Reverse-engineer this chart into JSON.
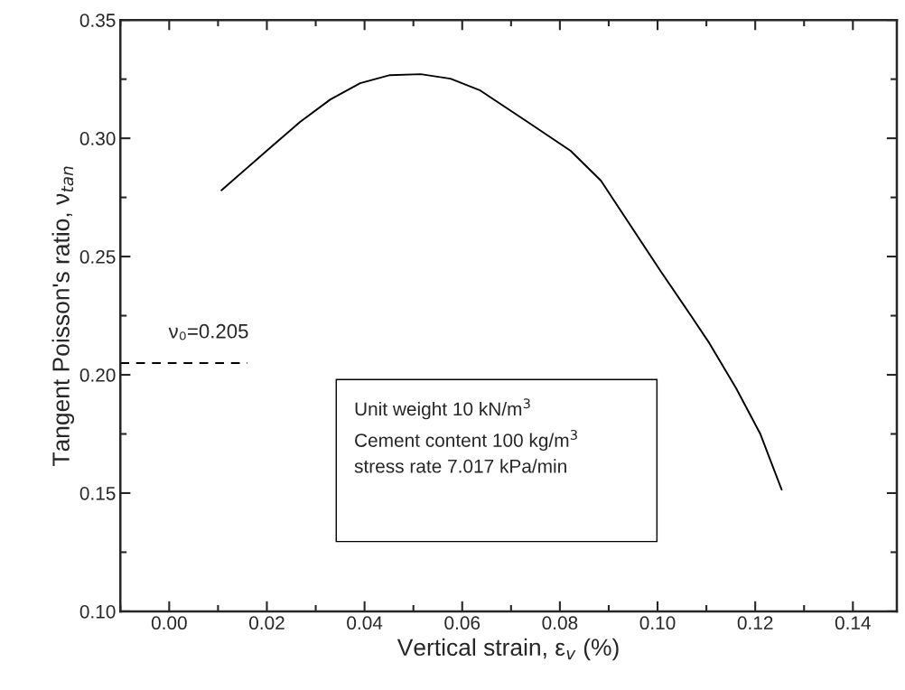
{
  "chart_data": {
    "type": "line",
    "xlabel": "Vertical strain, ε$_{v}$ (%)",
    "ylabel": "Tangent Poisson's ratio, ν$_{tan}$",
    "series": [
      {
        "color": "#000000",
        "line_style": "solid",
        "x": [
          0.0107,
          0.0207,
          0.0268,
          0.033,
          0.0391,
          0.0452,
          0.0515,
          0.0576,
          0.0637,
          0.0729,
          0.0822,
          0.0884,
          0.0945,
          0.1006,
          0.1069,
          0.1106,
          0.1161,
          0.121,
          0.1254
        ],
        "values": [
          0.278,
          0.296,
          0.3069,
          0.3164,
          0.3233,
          0.3267,
          0.3271,
          0.3252,
          0.3202,
          0.3076,
          0.2947,
          0.2821,
          0.263,
          0.2439,
          0.2248,
          0.2134,
          0.1943,
          0.1752,
          0.1515
        ]
      },
      {
        "color": "#000000",
        "line_style": "dashed",
        "x": [
          -0.01,
          0.016
        ],
        "values": [
          0.205,
          0.205
        ]
      }
    ],
    "annotations": [
      "ν₀=0.205",
      "Unit weight 10 kN/m$^{3}$\nCement content 100 kg/m$^{3}$\nstress rate 7.017 kPa/min"
    ],
    "xlim": [
      -0.01,
      0.149
    ],
    "xticks": [
      {
        "value": 0.0,
        "label": "0.00"
      },
      {
        "value": 0.02,
        "label": "0.02"
      },
      {
        "value": 0.04,
        "label": "0.04"
      },
      {
        "value": 0.06,
        "label": "0.06"
      },
      {
        "value": 0.08,
        "label": "0.08"
      },
      {
        "value": 0.1,
        "label": "0.10"
      },
      {
        "value": 0.12,
        "label": "0.12"
      },
      {
        "value": 0.14,
        "label": "0.14"
      }
    ],
    "ylim": [
      0.1,
      0.35
    ],
    "yticks": [
      {
        "value": 0.1,
        "label": "0.10"
      },
      {
        "value": 0.15,
        "label": "0.15"
      },
      {
        "value": 0.2,
        "label": "0.20"
      },
      {
        "value": 0.25,
        "label": "0.25"
      },
      {
        "value": 0.3,
        "label": "0.30"
      },
      {
        "value": 0.35,
        "label": "0.35"
      }
    ],
    "grid": false,
    "legend": false,
    "marker": "none"
  }
}
